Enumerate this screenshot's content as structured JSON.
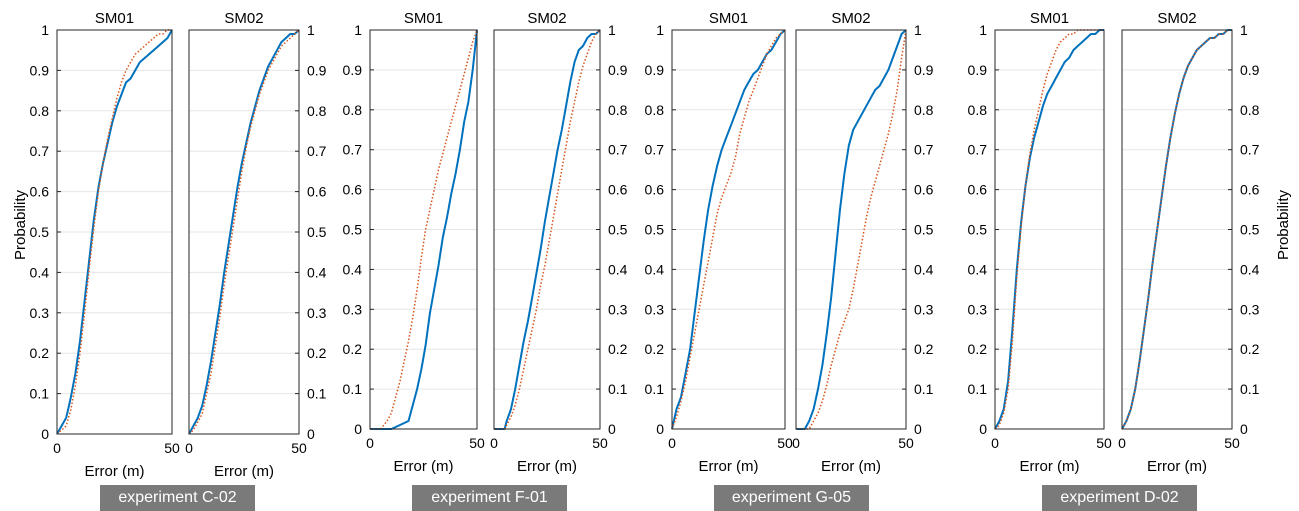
{
  "colors": {
    "blue": "#0072BD",
    "orange": "#D95319",
    "grid": "#e6e6e6",
    "label_bg": "#7a7a7a"
  },
  "experiments": [
    {
      "label": "experiment C-02",
      "xlabel": "Error (m)",
      "ylabel": "Probability",
      "ylabel_side": "left"
    },
    {
      "label": "experiment F-01",
      "xlabel": "Error (m)",
      "ylabel": "",
      "ylabel_side": "none"
    },
    {
      "label": "experiment G-05",
      "xlabel": "Error (m)",
      "ylabel": "",
      "ylabel_side": "none"
    },
    {
      "label": "experiment D-02",
      "xlabel": "Error (m)",
      "ylabel": "Probability",
      "ylabel_side": "right"
    }
  ],
  "chart_data": [
    {
      "type": "line",
      "experiment": "experiment C-02",
      "title": "SM01",
      "xlabel": "Error (m)",
      "ylabel": "Probability",
      "xlim": [
        0,
        50
      ],
      "ylim": [
        0,
        1
      ],
      "xticks": [
        "0",
        "50"
      ],
      "grid": true,
      "series": [
        {
          "color": "blue",
          "style": "solid",
          "x": [
            0,
            2,
            4,
            6,
            8,
            10,
            12,
            14,
            16,
            18,
            20,
            22,
            24,
            26,
            28,
            30,
            32,
            34,
            36,
            38,
            40,
            42,
            44,
            46,
            48,
            50
          ],
          "y": [
            0,
            0.02,
            0.04,
            0.09,
            0.15,
            0.23,
            0.33,
            0.43,
            0.53,
            0.61,
            0.67,
            0.72,
            0.77,
            0.81,
            0.84,
            0.87,
            0.88,
            0.9,
            0.92,
            0.93,
            0.94,
            0.95,
            0.96,
            0.97,
            0.98,
            1
          ]
        },
        {
          "color": "orange",
          "style": "dotted",
          "x": [
            0,
            2,
            4,
            6,
            8,
            10,
            12,
            14,
            16,
            18,
            20,
            22,
            24,
            26,
            28,
            30,
            32,
            34,
            36,
            38,
            40,
            42,
            44,
            46,
            48,
            50
          ],
          "y": [
            0,
            0.01,
            0.02,
            0.06,
            0.12,
            0.2,
            0.3,
            0.41,
            0.51,
            0.6,
            0.67,
            0.73,
            0.78,
            0.83,
            0.87,
            0.9,
            0.92,
            0.94,
            0.95,
            0.96,
            0.97,
            0.98,
            0.99,
            0.99,
            1,
            1
          ]
        }
      ]
    },
    {
      "type": "line",
      "experiment": "experiment C-02",
      "title": "SM02",
      "xlabel": "Error (m)",
      "ylabel": "",
      "xlim": [
        0,
        50
      ],
      "ylim": [
        0,
        1
      ],
      "xticks": [
        "0",
        "50"
      ],
      "grid": true,
      "series": [
        {
          "color": "blue",
          "style": "solid",
          "x": [
            0,
            2,
            4,
            6,
            8,
            10,
            12,
            14,
            16,
            18,
            20,
            22,
            24,
            26,
            28,
            30,
            32,
            34,
            36,
            38,
            40,
            42,
            44,
            46,
            48,
            50
          ],
          "y": [
            0,
            0.02,
            0.04,
            0.07,
            0.12,
            0.18,
            0.25,
            0.32,
            0.4,
            0.47,
            0.54,
            0.61,
            0.67,
            0.72,
            0.77,
            0.81,
            0.85,
            0.88,
            0.91,
            0.93,
            0.95,
            0.97,
            0.98,
            0.99,
            0.99,
            1
          ]
        },
        {
          "color": "orange",
          "style": "dotted",
          "x": [
            0,
            2,
            4,
            6,
            8,
            10,
            12,
            14,
            16,
            18,
            20,
            22,
            24,
            26,
            28,
            30,
            32,
            34,
            36,
            38,
            40,
            42,
            44,
            46,
            48,
            50
          ],
          "y": [
            0,
            0.01,
            0.03,
            0.05,
            0.1,
            0.15,
            0.22,
            0.29,
            0.37,
            0.44,
            0.51,
            0.58,
            0.65,
            0.71,
            0.76,
            0.8,
            0.84,
            0.87,
            0.9,
            0.92,
            0.94,
            0.96,
            0.97,
            0.98,
            0.99,
            1
          ]
        }
      ]
    },
    {
      "type": "line",
      "experiment": "experiment F-01",
      "title": "SM01",
      "xlabel": "Error (m)",
      "ylabel": "",
      "xlim": [
        0,
        50
      ],
      "ylim": [
        0,
        1
      ],
      "xticks": [
        "0",
        "50"
      ],
      "grid": true,
      "series": [
        {
          "color": "blue",
          "style": "solid",
          "x": [
            0,
            10,
            14,
            18,
            20,
            22,
            24,
            26,
            28,
            30,
            32,
            34,
            36,
            38,
            40,
            42,
            44,
            46,
            48,
            50
          ],
          "y": [
            0,
            0,
            0.01,
            0.02,
            0.06,
            0.1,
            0.15,
            0.21,
            0.29,
            0.35,
            0.41,
            0.48,
            0.53,
            0.59,
            0.64,
            0.7,
            0.77,
            0.82,
            0.9,
            1
          ]
        },
        {
          "color": "orange",
          "style": "dotted",
          "x": [
            0,
            5,
            8,
            10,
            12,
            14,
            16,
            18,
            20,
            22,
            24,
            26,
            28,
            30,
            32,
            34,
            36,
            38,
            40,
            42,
            44,
            46,
            48,
            50
          ],
          "y": [
            0,
            0,
            0.02,
            0.04,
            0.08,
            0.12,
            0.17,
            0.22,
            0.28,
            0.35,
            0.43,
            0.5,
            0.55,
            0.6,
            0.65,
            0.69,
            0.73,
            0.77,
            0.81,
            0.85,
            0.89,
            0.93,
            0.97,
            1
          ]
        }
      ]
    },
    {
      "type": "line",
      "experiment": "experiment F-01",
      "title": "SM02",
      "xlabel": "Error (m)",
      "ylabel": "",
      "xlim": [
        0,
        50
      ],
      "ylim": [
        0,
        1
      ],
      "xticks": [
        "0",
        "50"
      ],
      "grid": true,
      "series": [
        {
          "color": "blue",
          "style": "solid",
          "x": [
            0,
            5,
            6,
            8,
            10,
            12,
            14,
            16,
            18,
            20,
            22,
            24,
            26,
            28,
            30,
            32,
            34,
            36,
            38,
            40,
            42,
            44,
            46,
            48,
            50
          ],
          "y": [
            0,
            0,
            0.02,
            0.05,
            0.1,
            0.16,
            0.22,
            0.27,
            0.33,
            0.39,
            0.45,
            0.52,
            0.58,
            0.64,
            0.7,
            0.75,
            0.81,
            0.87,
            0.92,
            0.95,
            0.96,
            0.98,
            0.99,
            0.99,
            1
          ]
        },
        {
          "color": "orange",
          "style": "dotted",
          "x": [
            0,
            5,
            8,
            10,
            12,
            14,
            16,
            18,
            20,
            22,
            24,
            26,
            28,
            30,
            32,
            34,
            36,
            38,
            40,
            42,
            44,
            46,
            48,
            50
          ],
          "y": [
            0,
            0,
            0.03,
            0.06,
            0.1,
            0.15,
            0.2,
            0.25,
            0.3,
            0.36,
            0.41,
            0.47,
            0.53,
            0.59,
            0.65,
            0.71,
            0.77,
            0.82,
            0.87,
            0.91,
            0.94,
            0.97,
            0.99,
            1
          ]
        }
      ]
    },
    {
      "type": "line",
      "experiment": "experiment G-05",
      "title": "SM01",
      "xlabel": "Error (m)",
      "ylabel": "",
      "xlim": [
        0,
        50
      ],
      "ylim": [
        0,
        1
      ],
      "xticks": [
        "0",
        "50"
      ],
      "grid": true,
      "series": [
        {
          "color": "blue",
          "style": "solid",
          "x": [
            0,
            2,
            4,
            6,
            8,
            10,
            12,
            14,
            16,
            18,
            20,
            22,
            24,
            26,
            28,
            30,
            32,
            34,
            36,
            38,
            40,
            42,
            44,
            46,
            48,
            50
          ],
          "y": [
            0,
            0.05,
            0.08,
            0.14,
            0.2,
            0.29,
            0.38,
            0.47,
            0.55,
            0.61,
            0.66,
            0.7,
            0.73,
            0.76,
            0.79,
            0.82,
            0.85,
            0.87,
            0.89,
            0.9,
            0.92,
            0.94,
            0.95,
            0.97,
            0.99,
            1
          ]
        },
        {
          "color": "orange",
          "style": "dotted",
          "x": [
            0,
            2,
            4,
            6,
            8,
            10,
            12,
            14,
            16,
            18,
            20,
            22,
            24,
            26,
            28,
            30,
            32,
            34,
            36,
            38,
            40,
            42,
            44,
            46,
            48,
            50
          ],
          "y": [
            0,
            0.03,
            0.07,
            0.12,
            0.18,
            0.24,
            0.3,
            0.36,
            0.42,
            0.48,
            0.54,
            0.58,
            0.61,
            0.64,
            0.68,
            0.74,
            0.78,
            0.82,
            0.85,
            0.88,
            0.91,
            0.94,
            0.96,
            0.98,
            0.99,
            1
          ]
        }
      ]
    },
    {
      "type": "line",
      "experiment": "experiment G-05",
      "title": "SM02",
      "xlabel": "Error (m)",
      "ylabel": "",
      "xlim": [
        0,
        50
      ],
      "ylim": [
        0,
        1
      ],
      "xticks": [
        "0",
        "50"
      ],
      "grid": true,
      "series": [
        {
          "color": "blue",
          "style": "solid",
          "x": [
            0,
            4,
            6,
            8,
            10,
            12,
            14,
            16,
            18,
            20,
            22,
            24,
            26,
            28,
            30,
            32,
            34,
            36,
            38,
            40,
            42,
            44,
            46,
            48,
            50
          ],
          "y": [
            0,
            0,
            0.02,
            0.05,
            0.1,
            0.16,
            0.24,
            0.33,
            0.44,
            0.55,
            0.64,
            0.71,
            0.75,
            0.77,
            0.79,
            0.81,
            0.83,
            0.85,
            0.86,
            0.88,
            0.9,
            0.93,
            0.96,
            0.99,
            1
          ]
        },
        {
          "color": "orange",
          "style": "dotted",
          "x": [
            0,
            6,
            8,
            10,
            12,
            14,
            16,
            18,
            20,
            22,
            24,
            26,
            28,
            30,
            32,
            34,
            36,
            38,
            40,
            42,
            44,
            46,
            48,
            50
          ],
          "y": [
            0,
            0,
            0.02,
            0.04,
            0.07,
            0.11,
            0.16,
            0.2,
            0.24,
            0.27,
            0.3,
            0.35,
            0.41,
            0.47,
            0.53,
            0.58,
            0.62,
            0.66,
            0.7,
            0.74,
            0.79,
            0.85,
            0.93,
            1
          ]
        }
      ]
    },
    {
      "type": "line",
      "experiment": "experiment D-02",
      "title": "SM01",
      "xlabel": "Error (m)",
      "ylabel": "",
      "xlim": [
        0,
        50
      ],
      "ylim": [
        0,
        1
      ],
      "xticks": [
        "0",
        "50"
      ],
      "grid": true,
      "series": [
        {
          "color": "blue",
          "style": "solid",
          "x": [
            0,
            2,
            4,
            6,
            8,
            10,
            12,
            14,
            16,
            18,
            20,
            22,
            24,
            26,
            28,
            30,
            32,
            34,
            36,
            38,
            40,
            42,
            44,
            46,
            48,
            50
          ],
          "y": [
            0,
            0.02,
            0.05,
            0.12,
            0.25,
            0.4,
            0.52,
            0.61,
            0.68,
            0.73,
            0.77,
            0.81,
            0.84,
            0.86,
            0.88,
            0.9,
            0.92,
            0.93,
            0.95,
            0.96,
            0.97,
            0.98,
            0.99,
            0.99,
            1,
            1
          ]
        },
        {
          "color": "orange",
          "style": "dotted",
          "x": [
            0,
            2,
            4,
            6,
            8,
            10,
            12,
            14,
            16,
            18,
            20,
            22,
            24,
            26,
            28,
            30,
            32,
            34,
            36,
            38,
            40,
            42,
            44,
            46,
            48,
            50
          ],
          "y": [
            0,
            0.01,
            0.04,
            0.1,
            0.22,
            0.38,
            0.51,
            0.61,
            0.69,
            0.75,
            0.8,
            0.85,
            0.89,
            0.92,
            0.95,
            0.97,
            0.98,
            0.99,
            0.99,
            1,
            1,
            1,
            1,
            1,
            1,
            1
          ]
        }
      ]
    },
    {
      "type": "line",
      "experiment": "experiment D-02",
      "title": "SM02",
      "xlabel": "Error (m)",
      "ylabel": "Probability",
      "xlim": [
        0,
        50
      ],
      "ylim": [
        0,
        1
      ],
      "xticks": [
        "0",
        "50"
      ],
      "grid": true,
      "series": [
        {
          "color": "blue",
          "style": "solid",
          "x": [
            0,
            2,
            4,
            6,
            8,
            10,
            12,
            14,
            16,
            18,
            20,
            22,
            24,
            26,
            28,
            30,
            32,
            34,
            36,
            38,
            40,
            42,
            44,
            46,
            48,
            50
          ],
          "y": [
            0,
            0.02,
            0.05,
            0.1,
            0.17,
            0.25,
            0.33,
            0.42,
            0.5,
            0.58,
            0.66,
            0.73,
            0.79,
            0.84,
            0.88,
            0.91,
            0.93,
            0.95,
            0.96,
            0.97,
            0.98,
            0.98,
            0.99,
            0.99,
            1,
            1
          ]
        },
        {
          "color": "orange",
          "style": "dotted",
          "x": [
            0,
            2,
            4,
            6,
            8,
            10,
            12,
            14,
            16,
            18,
            20,
            22,
            24,
            26,
            28,
            30,
            32,
            34,
            36,
            38,
            40,
            42,
            44,
            46,
            48,
            50
          ],
          "y": [
            0,
            0.02,
            0.05,
            0.1,
            0.17,
            0.25,
            0.33,
            0.42,
            0.5,
            0.58,
            0.66,
            0.73,
            0.79,
            0.84,
            0.88,
            0.91,
            0.93,
            0.95,
            0.96,
            0.97,
            0.98,
            0.98,
            0.99,
            0.99,
            1,
            1
          ]
        }
      ]
    }
  ]
}
